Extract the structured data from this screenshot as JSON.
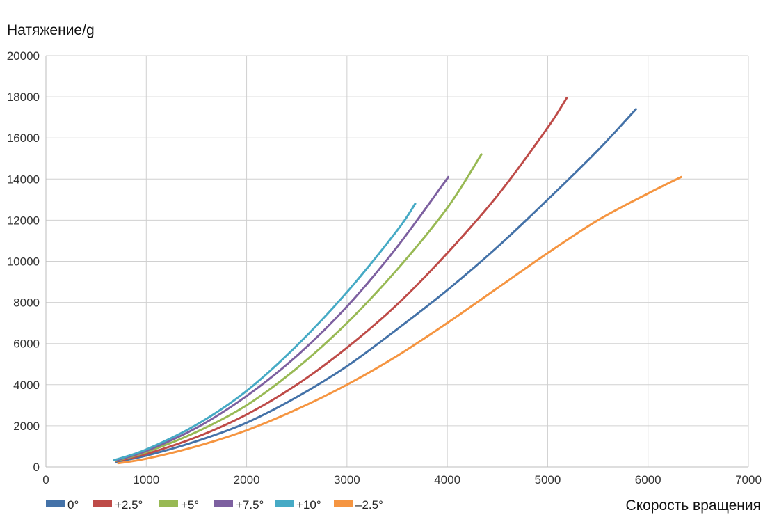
{
  "chart_data": {
    "type": "line",
    "ylabel": "Натяжение/g",
    "xlabel": "Скорость вращения",
    "xlim": [
      0,
      7000
    ],
    "ylim": [
      0,
      20000
    ],
    "x_ticks": [
      0,
      1000,
      2000,
      3000,
      4000,
      5000,
      6000,
      7000
    ],
    "y_ticks": [
      0,
      2000,
      4000,
      6000,
      8000,
      10000,
      12000,
      14000,
      16000,
      18000,
      20000
    ],
    "grid": true,
    "legend_position": "bottom-left",
    "series": [
      {
        "name": "0°",
        "color": "#4472a8",
        "x": [
          700,
          1000,
          1500,
          2000,
          2500,
          3000,
          3500,
          4000,
          4500,
          5000,
          5500,
          5880
        ],
        "y": [
          250,
          550,
          1250,
          2150,
          3400,
          4900,
          6700,
          8600,
          10700,
          13000,
          15400,
          17400
        ]
      },
      {
        "name": "+2.5°",
        "color": "#be4b48",
        "x": [
          700,
          1000,
          1500,
          2000,
          2500,
          3000,
          3500,
          4000,
          4500,
          5000,
          5190
        ],
        "y": [
          280,
          630,
          1450,
          2550,
          4000,
          5800,
          7900,
          10400,
          13200,
          16500,
          17950
        ]
      },
      {
        "name": "+5°",
        "color": "#98b954",
        "x": [
          700,
          1000,
          1500,
          2000,
          2500,
          3000,
          3500,
          4000,
          4340
        ],
        "y": [
          300,
          720,
          1700,
          3000,
          4800,
          7000,
          9600,
          12600,
          15200
        ]
      },
      {
        "name": "+7.5°",
        "color": "#7d60a0",
        "x": [
          700,
          1000,
          1500,
          2000,
          2500,
          3000,
          3500,
          4010
        ],
        "y": [
          320,
          780,
          1900,
          3450,
          5400,
          7800,
          10700,
          14100
        ]
      },
      {
        "name": "+10°",
        "color": "#46aac5",
        "x": [
          680,
          1000,
          1500,
          2000,
          2500,
          3000,
          3500,
          3680
        ],
        "y": [
          330,
          850,
          2050,
          3700,
          5900,
          8500,
          11500,
          12800
        ]
      },
      {
        "name": "–2.5°",
        "color": "#f59541",
        "x": [
          720,
          1000,
          1500,
          2000,
          2500,
          3000,
          3500,
          4000,
          4500,
          5000,
          5500,
          6000,
          6330
        ],
        "y": [
          180,
          400,
          1000,
          1780,
          2800,
          4000,
          5400,
          7000,
          8700,
          10400,
          12000,
          13300,
          14100
        ]
      }
    ]
  }
}
